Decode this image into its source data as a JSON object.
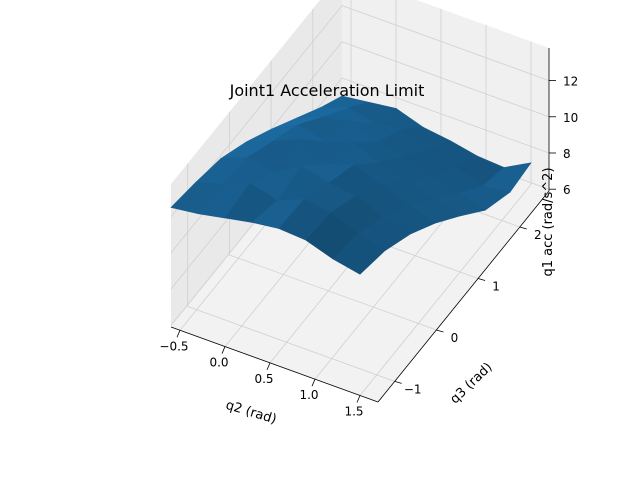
{
  "chart_data": {
    "type": "surface3d",
    "title": "Joint1 Acceleration Limit",
    "xlabel": "q2 (rad)",
    "ylabel": "q3 (rad)",
    "zlabel": "q1 acc (rad/s^2)",
    "x_ticks": [
      "−0.5",
      "0.0",
      "0.5",
      "1.0",
      "1.5"
    ],
    "y_ticks": [
      "−1",
      "0",
      "1",
      "2"
    ],
    "z_ticks": [
      "6",
      "8",
      "10",
      "12"
    ],
    "xlim": [
      -0.6,
      1.7
    ],
    "ylim": [
      -1.4,
      2.7
    ],
    "zlim": [
      5.9,
      13.8
    ],
    "surface_color": "#1f77b4",
    "pane_color": "#f2f2f2",
    "grid": true,
    "x": [
      -0.6,
      -0.3,
      0.0,
      0.3,
      0.6,
      0.9,
      1.2,
      1.5
    ],
    "y": [
      -1.4,
      -0.8,
      -0.2,
      0.4,
      1.0,
      1.6,
      2.2,
      2.7
    ],
    "z": [
      [
        12.5,
        12.7,
        13.0,
        13.3,
        13.5,
        13.4,
        12.9,
        12.6
      ],
      [
        12.2,
        12.6,
        13.2,
        12.8,
        13.4,
        13.2,
        12.6,
        12.2
      ],
      [
        11.8,
        12.4,
        12.1,
        13.0,
        12.6,
        12.4,
        11.8,
        11.4
      ],
      [
        11.0,
        11.6,
        12.2,
        11.4,
        11.9,
        11.3,
        10.8,
        10.3
      ],
      [
        10.0,
        10.8,
        10.4,
        10.9,
        10.3,
        9.9,
        9.4,
        9.0
      ],
      [
        8.9,
        9.5,
        9.8,
        9.2,
        9.0,
        8.4,
        8.0,
        7.6
      ],
      [
        7.8,
        8.3,
        8.0,
        8.2,
        7.6,
        7.2,
        6.7,
        6.9
      ],
      [
        7.0,
        7.2,
        7.4,
        6.9,
        6.7,
        6.4,
        6.3,
        7.1
      ]
    ]
  }
}
